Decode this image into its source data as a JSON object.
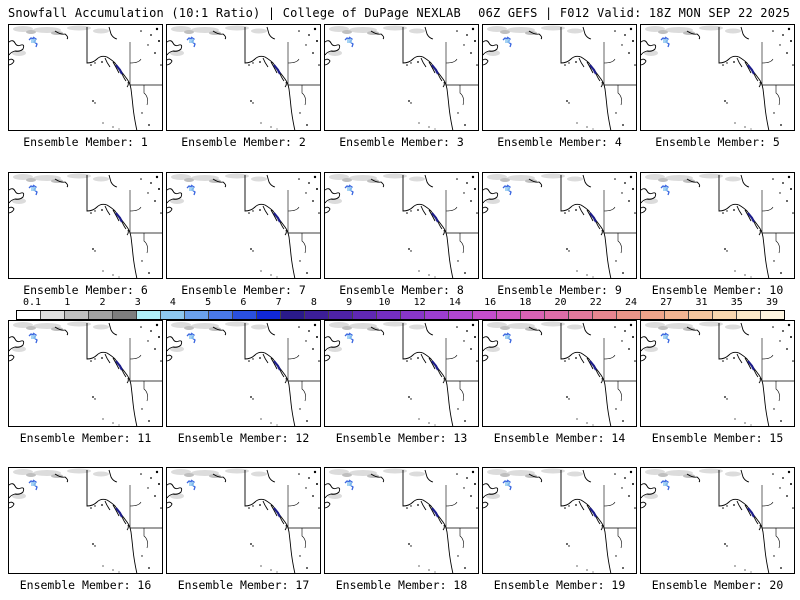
{
  "header": {
    "title": "Snowfall Accumulation (10:1 Ratio) | College of DuPage NEXLAB",
    "run_info": "06Z GEFS | F012 Valid: 18Z MON SEP 22 2025"
  },
  "members": [
    {
      "label": "Ensemble Member: 1"
    },
    {
      "label": "Ensemble Member: 2"
    },
    {
      "label": "Ensemble Member: 3"
    },
    {
      "label": "Ensemble Member: 4"
    },
    {
      "label": "Ensemble Member: 5"
    },
    {
      "label": "Ensemble Member: 6"
    },
    {
      "label": "Ensemble Member: 7"
    },
    {
      "label": "Ensemble Member: 8"
    },
    {
      "label": "Ensemble Member: 9"
    },
    {
      "label": "Ensemble Member: 10"
    },
    {
      "label": "Ensemble Member: 11"
    },
    {
      "label": "Ensemble Member: 12"
    },
    {
      "label": "Ensemble Member: 13"
    },
    {
      "label": "Ensemble Member: 14"
    },
    {
      "label": "Ensemble Member: 15"
    },
    {
      "label": "Ensemble Member: 16"
    },
    {
      "label": "Ensemble Member: 17"
    },
    {
      "label": "Ensemble Member: 18"
    },
    {
      "label": "Ensemble Member: 19"
    },
    {
      "label": "Ensemble Member: 20"
    }
  ],
  "legend": {
    "ticks": [
      "0.1",
      "1",
      "2",
      "3",
      "4",
      "5",
      "6",
      "7",
      "8",
      "9",
      "10",
      "12",
      "14",
      "16",
      "18",
      "20",
      "22",
      "24",
      "27",
      "31",
      "35",
      "39"
    ],
    "colors": [
      "#ffffff",
      "#e0e0e0",
      "#c0c0c0",
      "#a0a0a0",
      "#7e7e7e",
      "#b0f0f8",
      "#8ec8f0",
      "#6aa0ec",
      "#4a78e8",
      "#2a50e0",
      "#1028d8",
      "#2a1a8a",
      "#3c1e98",
      "#4e22a6",
      "#6028b4",
      "#742ec0",
      "#8836c8",
      "#9c3ed0",
      "#b046d2",
      "#c44ecc",
      "#d058c0",
      "#d862b4",
      "#de6ca8",
      "#e2789c",
      "#e68690",
      "#ea9488",
      "#eea48a",
      "#f2b492",
      "#f6c69e",
      "#f9d8b0",
      "#fbe8c8",
      "#fdf4e0"
    ]
  }
}
